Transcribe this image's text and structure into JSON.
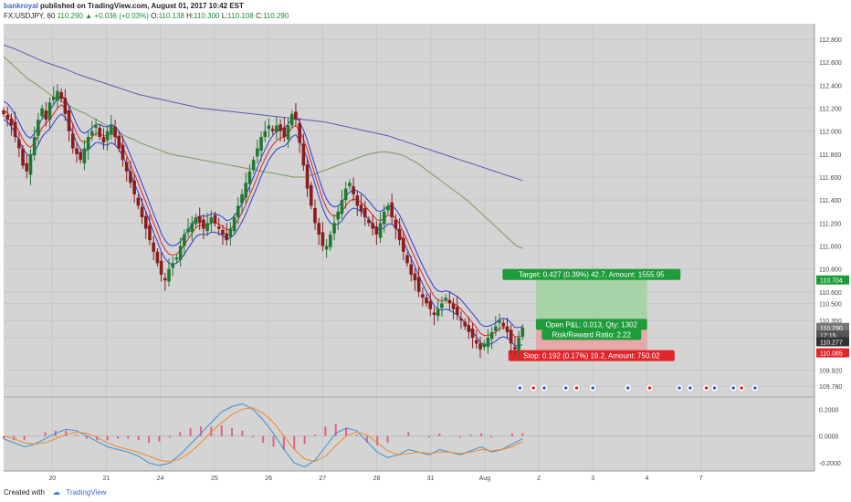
{
  "header": {
    "author": "bankroyal",
    "published_text": "published on TradingView.com, August 01, 2017 10:42 EST",
    "symbol": "FX:USDJPY, 60",
    "last": "110.290",
    "change_arrow": "▲",
    "change": "+0.036 (+0.03%)",
    "o_label": "O:",
    "o": "110.138",
    "h_label": "H:",
    "h": "110.300",
    "l_label": "L:",
    "l": "110.108",
    "c_label": "C:",
    "c": "110.290"
  },
  "footer": {
    "created_with": "Created with",
    "brand": "TradingView"
  },
  "position_tool": {
    "target_label": "Target: 0.427 (0.39%) 42.7, Amount: 1555.95",
    "pnl_label": "Open P&L: 0.013, Qty: 1302",
    "ratio_label": "Risk/Reward Ratio: 2.22",
    "stop_label": "Stop: 0.192 (0.17%) 19.2, Amount: 750.02"
  },
  "price_axis": {
    "ticks": [
      "112.800",
      "112.600",
      "112.400",
      "112.200",
      "112.000",
      "111.800",
      "111.600",
      "111.400",
      "111.200",
      "111.000",
      "110.800",
      "110.600",
      "110.500",
      "110.350",
      "110.200",
      "109.920",
      "109.780"
    ],
    "badges": [
      {
        "text": "110.704",
        "color": "#1e9c3a"
      },
      {
        "text": "110.290",
        "color": "#777777"
      },
      {
        "text": "17:15",
        "color": "#555555"
      },
      {
        "text": "110.277",
        "color": "#333333"
      },
      {
        "text": "110.085",
        "color": "#e0262a"
      }
    ]
  },
  "macd_axis": {
    "ticks": [
      "0.2000",
      "0.0000",
      "-0.2000"
    ]
  },
  "time_axis": {
    "labels": [
      "20",
      "21",
      "24",
      "25",
      "26",
      "27",
      "28",
      "31",
      "Aug",
      "2",
      "3",
      "4",
      "7"
    ]
  },
  "colors": {
    "background": "#d4d4d4",
    "bull": "#1f7a30",
    "bear": "#8a1c1c",
    "ema_red": "#e0262a",
    "ema_blue": "#2f3bd6",
    "ma_green": "#7b9b5a",
    "ma_purple": "#5a5ab5",
    "target_zone": "#9fd29f",
    "stop_zone": "#e9a0a0",
    "macd_blue": "#3c8fd6",
    "macd_orange": "#f08a24",
    "histogram": "#e0608a"
  },
  "chart_data": {
    "type": "candlestick",
    "symbol": "FX:USDJPY",
    "timeframe": "60",
    "ylim": [
      109.7,
      112.92
    ],
    "x_labels": [
      "20",
      "21",
      "24",
      "25",
      "26",
      "27",
      "28",
      "31",
      "Aug",
      "2",
      "3",
      "4",
      "7"
    ],
    "close_path": [
      112.15,
      112.1,
      112.05,
      111.95,
      111.85,
      111.7,
      111.65,
      111.8,
      111.95,
      112.1,
      112.2,
      112.1,
      112.25,
      112.3,
      112.35,
      112.28,
      112.15,
      112.0,
      111.85,
      111.8,
      111.75,
      111.85,
      111.95,
      112.0,
      112.05,
      111.95,
      111.9,
      112.0,
      112.05,
      111.95,
      111.85,
      111.75,
      111.65,
      111.55,
      111.45,
      111.35,
      111.25,
      111.15,
      111.05,
      110.95,
      110.85,
      110.75,
      110.7,
      110.8,
      110.85,
      110.9,
      111.0,
      111.1,
      111.15,
      111.2,
      111.25,
      111.2,
      111.15,
      111.2,
      111.25,
      111.2,
      111.15,
      111.1,
      111.05,
      111.15,
      111.25,
      111.35,
      111.45,
      111.55,
      111.65,
      111.75,
      111.85,
      111.95,
      112.0,
      112.05,
      112.0,
      112.05,
      112.0,
      111.95,
      112.05,
      112.15,
      112.1,
      111.9,
      111.7,
      111.5,
      111.35,
      111.2,
      111.1,
      111.0,
      111.0,
      111.1,
      111.2,
      111.3,
      111.4,
      111.5,
      111.55,
      111.45,
      111.35,
      111.3,
      111.25,
      111.2,
      111.15,
      111.1,
      111.2,
      111.3,
      111.35,
      111.25,
      111.15,
      111.05,
      110.95,
      110.85,
      110.75,
      110.7,
      110.6,
      110.55,
      110.5,
      110.45,
      110.4,
      110.45,
      110.5,
      110.55,
      110.5,
      110.45,
      110.4,
      110.35,
      110.3,
      110.25,
      110.2,
      110.15,
      110.1,
      110.15,
      110.2,
      110.25,
      110.3,
      110.35,
      110.3,
      110.25,
      110.15,
      110.1,
      110.2,
      110.29
    ],
    "ema_red_path": [
      112.18,
      112.16,
      112.12,
      112.06,
      112.0,
      111.93,
      111.88,
      111.86,
      111.9,
      111.96,
      112.03,
      112.07,
      112.1,
      112.15,
      112.2,
      112.23,
      112.2,
      112.14,
      112.06,
      111.98,
      111.92,
      111.9,
      111.92,
      111.95,
      111.98,
      111.98,
      111.96,
      111.96,
      111.98,
      111.96,
      111.92,
      111.86,
      111.79,
      111.71,
      111.63,
      111.55,
      111.46,
      111.38,
      111.29,
      111.2,
      111.12,
      111.03,
      110.97,
      110.93,
      110.92,
      110.93,
      110.96,
      111.01,
      111.06,
      111.11,
      111.16,
      111.18,
      111.18,
      111.18,
      111.2,
      111.2,
      111.19,
      111.17,
      111.14,
      111.15,
      111.18,
      111.23,
      111.29,
      111.36,
      111.44,
      111.52,
      111.6,
      111.69,
      111.76,
      111.83,
      111.88,
      111.92,
      111.94,
      111.95,
      111.98,
      112.03,
      112.05,
      112.0,
      111.93,
      111.84,
      111.73,
      111.62,
      111.51,
      111.41,
      111.33,
      111.28,
      111.26,
      111.27,
      111.3,
      111.35,
      111.39,
      111.41,
      111.4,
      111.38,
      111.35,
      111.31,
      111.27,
      111.23,
      111.22,
      111.24,
      111.27,
      111.27,
      111.24,
      111.19,
      111.12,
      111.05,
      110.97,
      110.9,
      110.82,
      110.75,
      110.68,
      110.62,
      110.56,
      110.53,
      110.52,
      110.53,
      110.52,
      110.5,
      110.48,
      110.45,
      110.41,
      110.37,
      110.33,
      110.29,
      110.24,
      110.22,
      110.22,
      110.23,
      110.25,
      110.28,
      110.29,
      110.28,
      110.25,
      110.21,
      110.21,
      110.22
    ],
    "ma_green_path": [
      112.65,
      112.6,
      112.55,
      112.5,
      112.45,
      112.42,
      112.38,
      112.34,
      112.3,
      112.27,
      112.24,
      112.21,
      112.18,
      112.16,
      112.13,
      112.1,
      112.07,
      112.04,
      112.01,
      111.98,
      111.95,
      111.93,
      111.9,
      111.88,
      111.86,
      111.84,
      111.82,
      111.8,
      111.79,
      111.78,
      111.77,
      111.76,
      111.75,
      111.74,
      111.73,
      111.72,
      111.71,
      111.7,
      111.69,
      111.68,
      111.67,
      111.66,
      111.65,
      111.64,
      111.63,
      111.62,
      111.61,
      111.6,
      111.6,
      111.6,
      111.62,
      111.64,
      111.66,
      111.68,
      111.7,
      111.72,
      111.74,
      111.76,
      111.78,
      111.8,
      111.81,
      111.82,
      111.82,
      111.81,
      111.8,
      111.78,
      111.75,
      111.72,
      111.68,
      111.64,
      111.6,
      111.56,
      111.52,
      111.48,
      111.44,
      111.4,
      111.35,
      111.3,
      111.25,
      111.2,
      111.15,
      111.1,
      111.05,
      111.0,
      110.98
    ],
    "ma_purple_path": [
      112.75,
      112.72,
      112.68,
      112.64,
      112.6,
      112.57,
      112.54,
      112.5,
      112.47,
      112.44,
      112.41,
      112.38,
      112.35,
      112.32,
      112.3,
      112.28,
      112.26,
      112.24,
      112.22,
      112.2,
      112.19,
      112.18,
      112.17,
      112.16,
      112.15,
      112.14,
      112.13,
      112.12,
      112.11,
      112.1,
      112.09,
      112.08,
      112.06,
      112.04,
      112.02,
      112.0,
      111.98,
      111.96,
      111.93,
      111.9,
      111.87,
      111.84,
      111.81,
      111.78,
      111.75,
      111.72,
      111.69,
      111.66,
      111.63,
      111.6,
      111.57
    ],
    "position": {
      "entry": 110.277,
      "target": 110.704,
      "stop": 110.085,
      "target_label": "Target: 0.427 (0.39%) 42.7, Amount: 1555.95",
      "stop_label": "Stop: 0.192 (0.17%) 19.2, Amount: 750.02",
      "pnl_label": "Open P&L: 0.013, Qty: 1302",
      "ratio_label": "Risk/Reward Ratio: 2.22"
    },
    "macd": {
      "ylim": [
        -0.26,
        0.27
      ],
      "ticks": [
        0.2,
        0.0,
        -0.2
      ],
      "macd_path": [
        -0.02,
        -0.05,
        -0.08,
        -0.06,
        -0.02,
        0.02,
        0.05,
        0.04,
        0.0,
        -0.04,
        -0.08,
        -0.1,
        -0.12,
        -0.15,
        -0.2,
        -0.22,
        -0.2,
        -0.14,
        -0.06,
        0.02,
        0.1,
        0.18,
        0.22,
        0.24,
        0.2,
        0.12,
        0.02,
        -0.1,
        -0.2,
        -0.23,
        -0.18,
        -0.08,
        0.02,
        0.06,
        0.04,
        -0.04,
        -0.12,
        -0.16,
        -0.14,
        -0.1,
        -0.12,
        -0.14,
        -0.1,
        -0.12,
        -0.14,
        -0.11,
        -0.08,
        -0.12,
        -0.1,
        -0.06,
        -0.02
      ],
      "signal_path": [
        0.0,
        -0.02,
        -0.05,
        -0.06,
        -0.05,
        -0.02,
        0.01,
        0.03,
        0.02,
        -0.01,
        -0.05,
        -0.08,
        -0.1,
        -0.12,
        -0.15,
        -0.18,
        -0.19,
        -0.17,
        -0.12,
        -0.05,
        0.03,
        0.1,
        0.16,
        0.2,
        0.21,
        0.17,
        0.1,
        0.0,
        -0.1,
        -0.17,
        -0.19,
        -0.15,
        -0.07,
        0.0,
        0.03,
        0.01,
        -0.05,
        -0.11,
        -0.14,
        -0.13,
        -0.12,
        -0.13,
        -0.12,
        -0.12,
        -0.13,
        -0.12,
        -0.1,
        -0.11,
        -0.1,
        -0.08,
        -0.04
      ],
      "histogram_path": [
        -0.02,
        -0.03,
        -0.03,
        0.0,
        0.03,
        0.04,
        0.04,
        0.01,
        -0.02,
        -0.03,
        -0.03,
        -0.02,
        -0.02,
        -0.03,
        -0.05,
        -0.04,
        -0.01,
        0.03,
        0.06,
        0.07,
        0.07,
        0.08,
        0.06,
        0.04,
        -0.01,
        -0.05,
        -0.08,
        -0.1,
        -0.1,
        -0.06,
        0.01,
        0.07,
        0.09,
        0.06,
        0.01,
        -0.05,
        -0.07,
        -0.05,
        0.0,
        0.03,
        0.0,
        -0.01,
        0.02,
        0.0,
        -0.01,
        0.01,
        0.02,
        -0.01,
        0.0,
        0.02,
        0.02
      ]
    }
  }
}
